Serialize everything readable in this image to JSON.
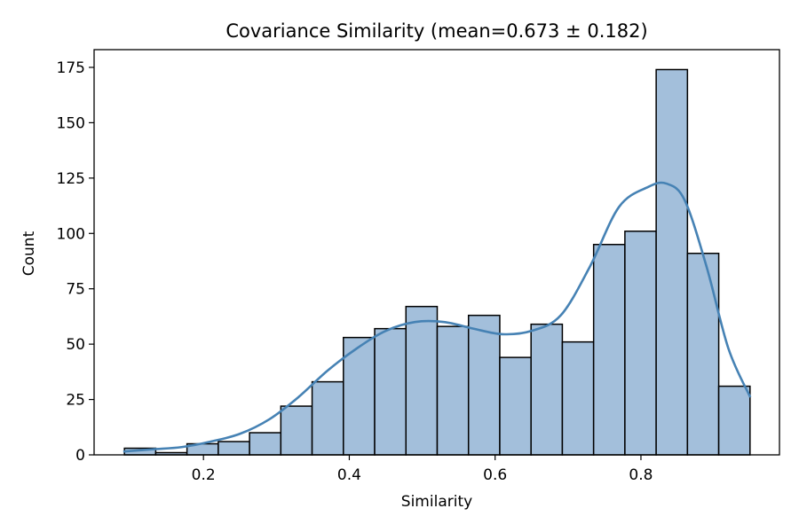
{
  "chart_data": {
    "type": "bar",
    "title": "Covariance Similarity (mean=0.673 ± 0.182)",
    "xlabel": "Similarity",
    "ylabel": "Count",
    "xlim": [
      0.05,
      0.99
    ],
    "ylim": [
      0,
      183
    ],
    "xticks": [
      0.2,
      0.4,
      0.6,
      0.8
    ],
    "xtick_labels": [
      "0.2",
      "0.4",
      "0.6",
      "0.8"
    ],
    "yticks": [
      0,
      25,
      50,
      75,
      100,
      125,
      150,
      175
    ],
    "ytick_labels": [
      "0",
      "25",
      "50",
      "75",
      "100",
      "125",
      "150",
      "175"
    ],
    "bin_edges": [
      0.0916,
      0.1345,
      0.1774,
      0.2203,
      0.2632,
      0.3061,
      0.349,
      0.3919,
      0.4348,
      0.4777,
      0.5206,
      0.5635,
      0.6064,
      0.6493,
      0.6922,
      0.7351,
      0.778,
      0.8209,
      0.8638,
      0.9067,
      0.9496
    ],
    "counts": [
      3,
      1,
      5,
      6,
      10,
      22,
      33,
      53,
      57,
      67,
      58,
      63,
      44,
      59,
      51,
      95,
      101,
      174,
      91,
      31
    ],
    "kde": {
      "x": [
        0.09,
        0.13,
        0.17,
        0.21,
        0.25,
        0.29,
        0.33,
        0.37,
        0.41,
        0.45,
        0.49,
        0.53,
        0.57,
        0.61,
        0.65,
        0.69,
        0.73,
        0.77,
        0.81,
        0.835,
        0.86,
        0.89,
        0.92,
        0.95
      ],
      "y": [
        1.5,
        2.5,
        3.5,
        6,
        9.5,
        16,
        26,
        38,
        48,
        56,
        60,
        60,
        57,
        54.5,
        56,
        63,
        85,
        112,
        121,
        122.5,
        115,
        85,
        48,
        26
      ]
    },
    "colors": {
      "bar_fill": "#a3bfdb",
      "bar_edge": "#000000",
      "kde_line": "#4682b4"
    },
    "grid": false
  }
}
